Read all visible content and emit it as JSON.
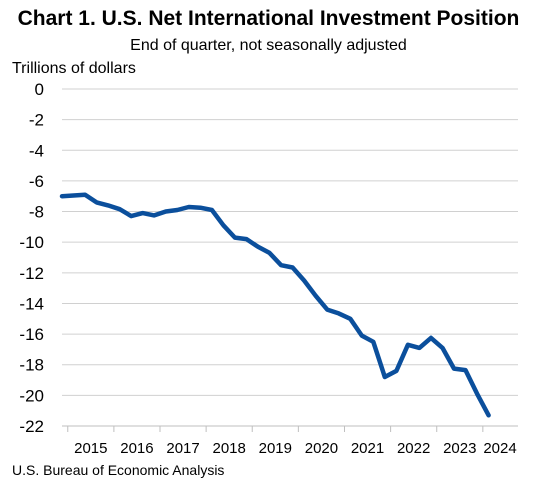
{
  "title": "Chart 1. U.S. Net International Investment Position",
  "subtitle": "End of quarter, not seasonally adjusted",
  "source": "U.S. Bureau of Economic Analysis",
  "chart_data": {
    "type": "line",
    "title": "Chart 1. U.S. Net International Investment Position",
    "subtitle": "End of quarter, not seasonally adjusted",
    "ylabel": "Trillions of dollars",
    "xlabel": "",
    "ylim": [
      -22,
      0
    ],
    "yticks": [
      0,
      -2,
      -4,
      -6,
      -8,
      -10,
      -12,
      -14,
      -16,
      -18,
      -20,
      -22
    ],
    "xtick_labels": [
      "2015",
      "2016",
      "2017",
      "2018",
      "2019",
      "2020",
      "2021",
      "2022",
      "2023",
      "2024"
    ],
    "grid": true,
    "line_color": "#0b4f9c",
    "x": [
      "2014 Q4",
      "2015 Q1",
      "2015 Q2",
      "2015 Q3",
      "2015 Q4",
      "2016 Q1",
      "2016 Q2",
      "2016 Q3",
      "2016 Q4",
      "2017 Q1",
      "2017 Q2",
      "2017 Q3",
      "2017 Q4",
      "2018 Q1",
      "2018 Q2",
      "2018 Q3",
      "2018 Q4",
      "2019 Q1",
      "2019 Q2",
      "2019 Q3",
      "2019 Q4",
      "2020 Q1",
      "2020 Q2",
      "2020 Q3",
      "2020 Q4",
      "2021 Q1",
      "2021 Q2",
      "2021 Q3",
      "2021 Q4",
      "2022 Q1",
      "2022 Q2",
      "2022 Q3",
      "2022 Q4",
      "2023 Q1",
      "2023 Q2",
      "2023 Q3",
      "2023 Q4",
      "2024 Q1"
    ],
    "series": [
      {
        "values": [
          -7.0,
          -6.95,
          -6.9,
          -7.4,
          -7.6,
          -7.85,
          -8.3,
          -8.1,
          -8.25,
          -8.0,
          -7.9,
          -7.7,
          -7.75,
          -7.9,
          -8.9,
          -9.7,
          -9.8,
          -10.3,
          -10.7,
          -11.5,
          -11.65,
          -12.5,
          -13.5,
          -14.4,
          -14.65,
          -15.0,
          -16.1,
          -16.5,
          -18.8,
          -18.4,
          -16.7,
          -16.9,
          -16.25,
          -16.9,
          -18.25,
          -18.35,
          -19.9,
          -21.3
        ]
      }
    ]
  }
}
